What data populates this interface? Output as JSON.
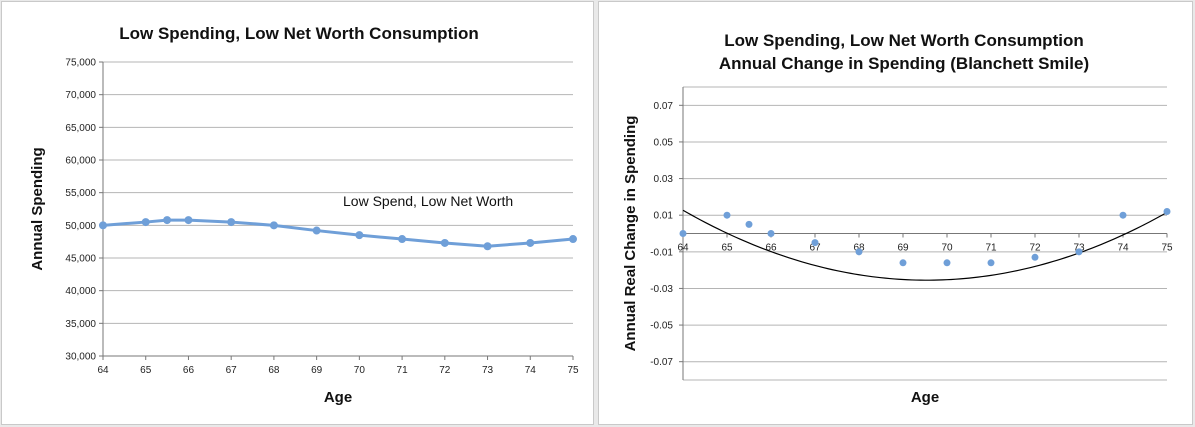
{
  "chart_data": [
    {
      "type": "line",
      "title": "Low Spending, Low Net Worth Consumption",
      "xlabel": "Age",
      "ylabel": "Annual Spending",
      "annotation": "Low Spend, Low Net Worth",
      "x_ticks": [
        "64",
        "65",
        "66",
        "67",
        "68",
        "69",
        "70",
        "71",
        "72",
        "73",
        "74",
        "75"
      ],
      "y_ticks": [
        "30,000",
        "35,000",
        "40,000",
        "45,000",
        "50,000",
        "55,000",
        "60,000",
        "65,000",
        "70,000",
        "75,000"
      ],
      "xlim": [
        64,
        75
      ],
      "ylim": [
        30000,
        75000
      ],
      "grid": true,
      "series": [
        {
          "x": [
            64,
            65,
            65.5,
            66,
            67,
            68,
            69,
            70,
            71,
            72,
            73,
            74,
            75
          ],
          "values": [
            50000,
            50500,
            50800,
            50800,
            50500,
            50000,
            49200,
            48500,
            47900,
            47300,
            46800,
            47300,
            47900
          ]
        }
      ],
      "color": "#6f9fd8"
    },
    {
      "type": "scatter",
      "title": "Low Spending, Low Net Worth Consumption",
      "subtitle": "Annual Change in Spending (Blanchett Smile)",
      "xlabel": "Age",
      "ylabel": "Annual Real Change in Spending",
      "x_ticks": [
        "64",
        "65",
        "66",
        "67",
        "68",
        "69",
        "70",
        "71",
        "72",
        "73",
        "74",
        "75"
      ],
      "y_ticks": [
        "-0.07",
        "-0.05",
        "-0.03",
        "-0.01",
        "0.01",
        "0.03",
        "0.05",
        "0.07"
      ],
      "xlim": [
        64,
        75
      ],
      "ylim": [
        -0.08,
        0.08
      ],
      "grid": true,
      "series": [
        {
          "x": [
            64,
            65,
            65.5,
            66,
            67,
            68,
            69,
            70,
            71,
            72,
            73,
            74,
            75
          ],
          "values": [
            0.0,
            0.01,
            0.005,
            0.0,
            -0.005,
            -0.01,
            -0.016,
            -0.016,
            -0.016,
            -0.013,
            -0.01,
            0.01,
            0.012
          ]
        }
      ],
      "trendline": {
        "type": "polynomial",
        "coefficients": [
          0.001243,
          -0.01378,
          0.0127
        ]
      },
      "color": "#6f9fd8",
      "trend_color": "#000000"
    }
  ]
}
